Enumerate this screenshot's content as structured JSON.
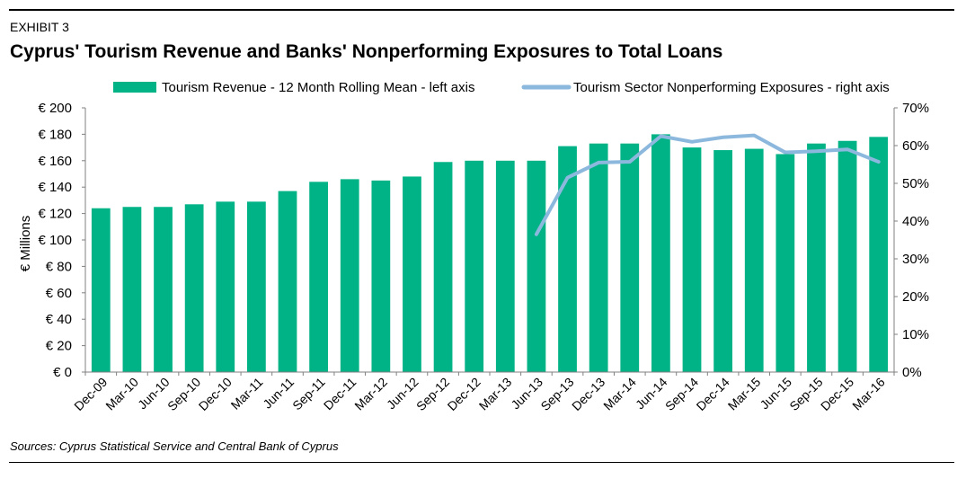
{
  "header": {
    "exhibit": "EXHIBIT 3",
    "title": "Cyprus' Tourism Revenue and Banks' Nonperforming Exposures to Total Loans"
  },
  "footer": {
    "source": "Sources: Cyprus Statistical Service and Central Bank of Cyprus"
  },
  "chart_data": {
    "type": "bar",
    "categories": [
      "Dec-09",
      "Mar-10",
      "Jun-10",
      "Sep-10",
      "Dec-10",
      "Mar-11",
      "Jun-11",
      "Sep-11",
      "Dec-11",
      "Mar-12",
      "Jun-12",
      "Sep-12",
      "Dec-12",
      "Mar-13",
      "Jun-13",
      "Sep-13",
      "Dec-13",
      "Mar-14",
      "Jun-14",
      "Sep-14",
      "Dec-14",
      "Mar-15",
      "Jun-15",
      "Sep-15",
      "Dec-15",
      "Mar-16"
    ],
    "series": [
      {
        "name": "Tourism Revenue - 12 Month Rolling Mean - left axis",
        "type": "bar",
        "axis": "left",
        "color": "#00b386",
        "values": [
          124,
          125,
          125,
          127,
          129,
          129,
          137,
          144,
          146,
          145,
          148,
          159,
          160,
          160,
          160,
          171,
          173,
          173,
          180,
          170,
          168,
          169,
          165,
          173,
          175,
          178
        ]
      },
      {
        "name": "Tourism Sector Nonperforming Exposures - right axis",
        "type": "line",
        "axis": "right",
        "color": "#8db8de",
        "values": [
          null,
          null,
          null,
          null,
          null,
          null,
          null,
          null,
          null,
          null,
          null,
          null,
          null,
          null,
          0.365,
          0.515,
          0.555,
          0.557,
          0.625,
          0.61,
          0.622,
          0.627,
          0.582,
          0.585,
          0.59,
          0.557
        ]
      }
    ],
    "ylabel": "€ Millions",
    "y_left": {
      "min": 0,
      "max": 200,
      "step": 20,
      "tick_labels": [
        "€ 0",
        "€ 20",
        "€ 40",
        "€ 60",
        "€ 80",
        "€ 100",
        "€ 120",
        "€ 140",
        "€ 160",
        "€ 180",
        "€ 200"
      ]
    },
    "y_right": {
      "min": 0,
      "max": 0.7,
      "step": 0.1,
      "tick_labels": [
        "0%",
        "10%",
        "20%",
        "30%",
        "40%",
        "50%",
        "60%",
        "70%"
      ]
    },
    "legend": {
      "position": "top-center"
    },
    "grid": false
  }
}
